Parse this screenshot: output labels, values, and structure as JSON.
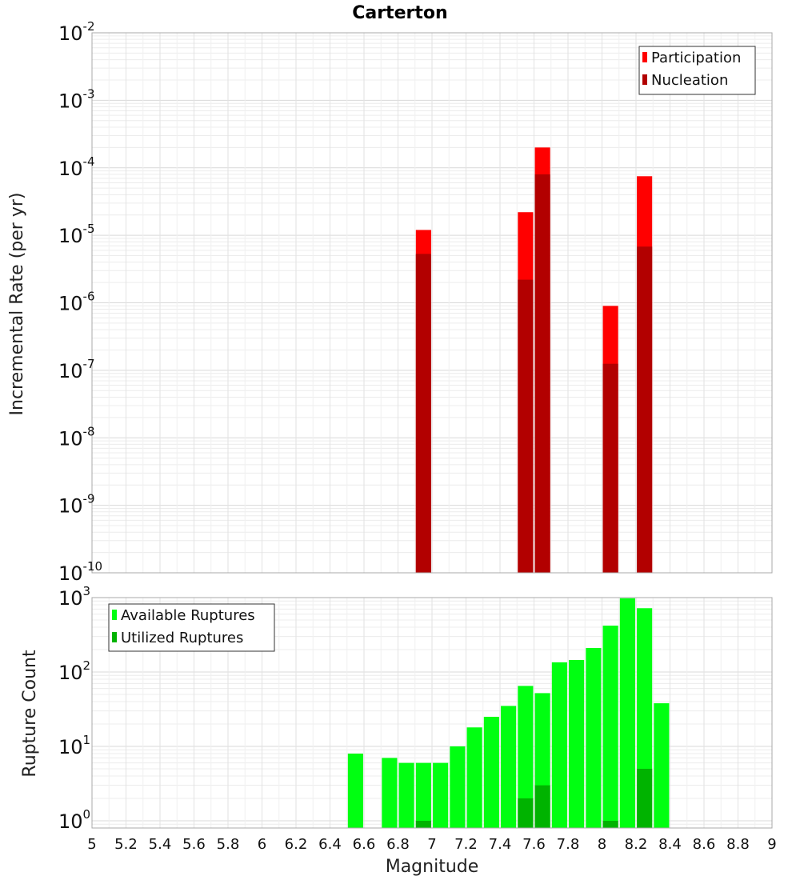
{
  "chart_data": [
    {
      "type": "bar",
      "title": "Carterton",
      "xlabel": "",
      "ylabel": "Incremental Rate (per yr)",
      "yscale": "log",
      "ylim": [
        1e-10,
        0.01
      ],
      "xlim": [
        5,
        9
      ],
      "bar_width": 0.09,
      "y_ticks": [
        {
          "base": "10",
          "exp": "-10"
        },
        {
          "base": "10",
          "exp": "-9"
        },
        {
          "base": "10",
          "exp": "-8"
        },
        {
          "base": "10",
          "exp": "-7"
        },
        {
          "base": "10",
          "exp": "-6"
        },
        {
          "base": "10",
          "exp": "-5"
        },
        {
          "base": "10",
          "exp": "-4"
        },
        {
          "base": "10",
          "exp": "-3"
        },
        {
          "base": "10",
          "exp": "-2"
        }
      ],
      "legend": {
        "position": "top-right"
      },
      "series": [
        {
          "name": "Participation",
          "color": "#ff0000",
          "x": [
            6.95,
            7.55,
            7.65,
            8.05,
            8.25
          ],
          "values": [
            1.2e-05,
            2.2e-05,
            0.0002,
            9e-07,
            7.5e-05
          ]
        },
        {
          "name": "Nucleation",
          "color": "#b20000",
          "x": [
            6.95,
            7.55,
            7.65,
            8.05,
            8.25
          ],
          "values": [
            5.3e-06,
            2.2e-06,
            8e-05,
            1.25e-07,
            6.8e-06
          ]
        }
      ]
    },
    {
      "type": "bar",
      "title": "",
      "xlabel": "Magnitude",
      "ylabel": "Rupture Count",
      "yscale": "log",
      "ylim": [
        0.8,
        1000
      ],
      "xlim": [
        5,
        9
      ],
      "bar_width": 0.09,
      "y_ticks": [
        {
          "base": "10",
          "exp": "0",
          "value": 1
        },
        {
          "base": "10",
          "exp": "1",
          "value": 10
        },
        {
          "base": "10",
          "exp": "2",
          "value": 100
        },
        {
          "base": "10",
          "exp": "3",
          "value": 1000
        }
      ],
      "x_ticks": [
        "5",
        "5.2",
        "5.4",
        "5.6",
        "5.8",
        "6",
        "6.2",
        "6.4",
        "6.6",
        "6.8",
        "7",
        "7.2",
        "7.4",
        "7.6",
        "7.8",
        "8",
        "8.2",
        "8.4",
        "8.6",
        "8.8",
        "9"
      ],
      "legend": {
        "position": "top-left"
      },
      "series": [
        {
          "name": "Available Ruptures",
          "color": "#00ff11",
          "x": [
            6.55,
            6.75,
            6.85,
            6.95,
            7.05,
            7.15,
            7.25,
            7.35,
            7.45,
            7.55,
            7.65,
            7.75,
            7.85,
            7.95,
            8.05,
            8.15,
            8.25,
            8.35
          ],
          "values": [
            8,
            7,
            6,
            6,
            6,
            10,
            18,
            25,
            35,
            65,
            52,
            135,
            145,
            210,
            420,
            980,
            720,
            38
          ]
        },
        {
          "name": "Utilized Ruptures",
          "color": "#00b300",
          "x": [
            6.95,
            7.55,
            7.65,
            8.05,
            8.25
          ],
          "values": [
            1,
            2,
            3,
            1,
            5
          ]
        }
      ]
    }
  ]
}
